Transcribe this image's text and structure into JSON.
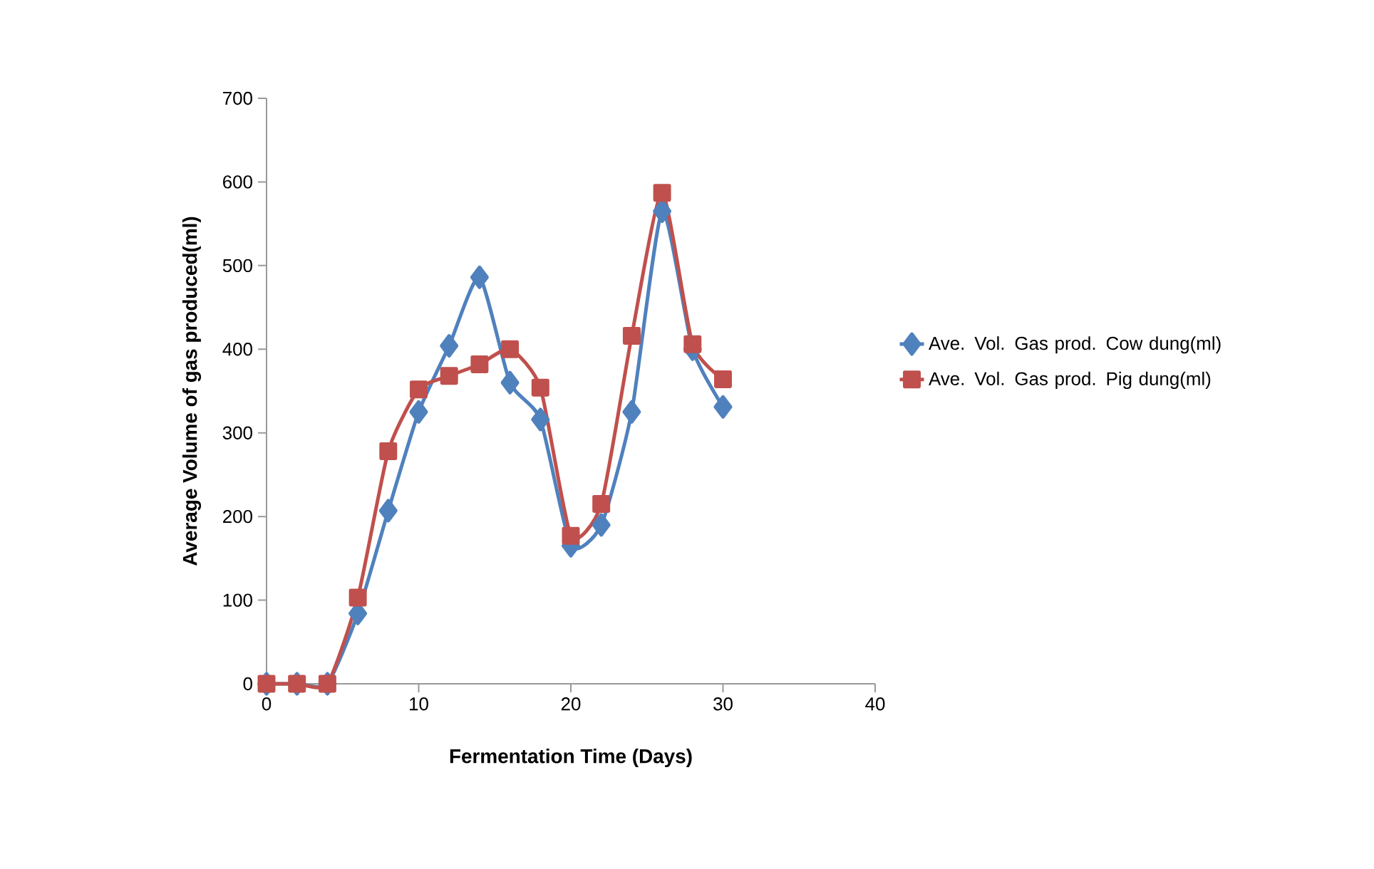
{
  "chart_data": {
    "type": "line",
    "xlabel": "Fermentation Time (Days)",
    "ylabel": "Average Volume of gas produced(ml)",
    "xlim": [
      0,
      40
    ],
    "xticks": [
      0,
      10,
      20,
      30,
      40
    ],
    "ylim": [
      0,
      700
    ],
    "yticks": [
      0,
      100,
      200,
      300,
      400,
      500,
      600,
      700
    ],
    "grid": false,
    "legend": "right",
    "line_style": "solid",
    "series": [
      {
        "name": "Ave. Vol. Gas prod. Cow dung(ml)",
        "color": "#4f81bd",
        "marker": "diamond",
        "x": [
          0,
          2,
          4,
          6,
          8,
          10,
          12,
          14,
          16,
          18,
          20,
          22,
          24,
          26,
          28,
          30
        ],
        "values": [
          0,
          0,
          0,
          84,
          207,
          325,
          404,
          486,
          360,
          316,
          165,
          190,
          325,
          565,
          400,
          331
        ]
      },
      {
        "name": "Ave. Vol. Gas prod. Pig dung(ml)",
        "color": "#c0504d",
        "marker": "square",
        "x": [
          0,
          2,
          4,
          6,
          8,
          10,
          12,
          14,
          16,
          18,
          20,
          22,
          24,
          26,
          28,
          30
        ],
        "values": [
          0,
          0,
          0,
          103,
          278,
          352,
          368,
          382,
          400,
          354,
          177,
          215,
          416,
          587,
          406,
          364
        ]
      }
    ]
  }
}
